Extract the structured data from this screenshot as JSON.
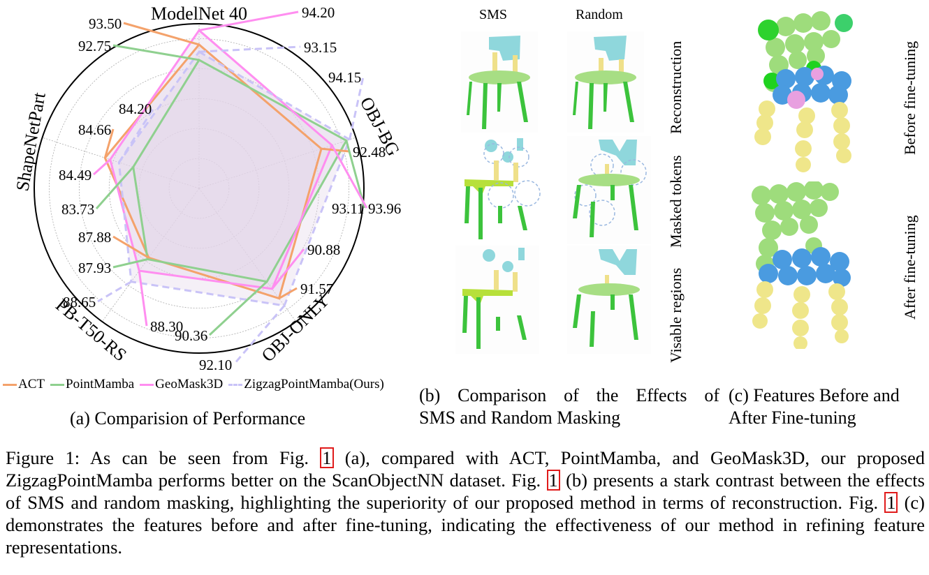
{
  "chart_data": {
    "type": "radar",
    "title": "",
    "axes": [
      "ModelNet 40",
      "OBJ-BG",
      "OBJ-ONLY",
      "PB-T50-RS",
      "ShapeNetPart"
    ],
    "series": [
      {
        "name": "ACT",
        "color": "#f4a26b",
        "dashed": false,
        "values": [
          93.5,
          92.48,
          91.57,
          87.88,
          84.66
        ]
      },
      {
        "name": "PointMamba",
        "color": "#8fd08f",
        "dashed": false,
        "values": [
          92.75,
          93.96,
          90.36,
          87.93,
          83.73
        ]
      },
      {
        "name": "GeoMask3D",
        "color": "#ff8ef0",
        "dashed": false,
        "values": [
          94.2,
          93.11,
          90.88,
          88.3,
          84.49
        ]
      },
      {
        "name": "ZigzagPointMamba(Ours)",
        "color": "#c9c3f7",
        "dashed": true,
        "values": [
          93.15,
          94.15,
          92.1,
          88.65,
          84.2
        ]
      }
    ],
    "fill_color": "#e3d3e8",
    "grid": true,
    "legend": "bottom",
    "rings": 5
  },
  "panel_a": {
    "caption": "(a) Comparision of Performance"
  },
  "panel_b": {
    "caption_line1": "(b) Comparison of the Effects of",
    "caption_line2": "SMS and Random Masking",
    "columns": [
      "SMS",
      "Random"
    ],
    "rows": [
      "Reconstruction",
      "Masked tokens",
      "Visable regions"
    ]
  },
  "panel_c": {
    "caption_line1": "(c) Features Before and",
    "caption_line2": "After Fine-tuning",
    "rows": [
      "Before fine-tuning",
      "After fine-tuning"
    ]
  },
  "caption": {
    "seg1": "Figure 1: As can be seen from Fig. ",
    "ref": "1",
    "seg2": " (a), compared with ACT, PointMamba, and GeoMask3D, our proposed ZigzagPointMamba performs better on the ScanObjectNN dataset. Fig. ",
    "seg3": " (b) presents a stark contrast between the effects of SMS and random masking, highlighting the superiority of our proposed method in terms of reconstruction. Fig. ",
    "seg4": " (c) demonstrates the features before and after fine-tuning, indicating the effectiveness of our method in refining feature representations."
  }
}
